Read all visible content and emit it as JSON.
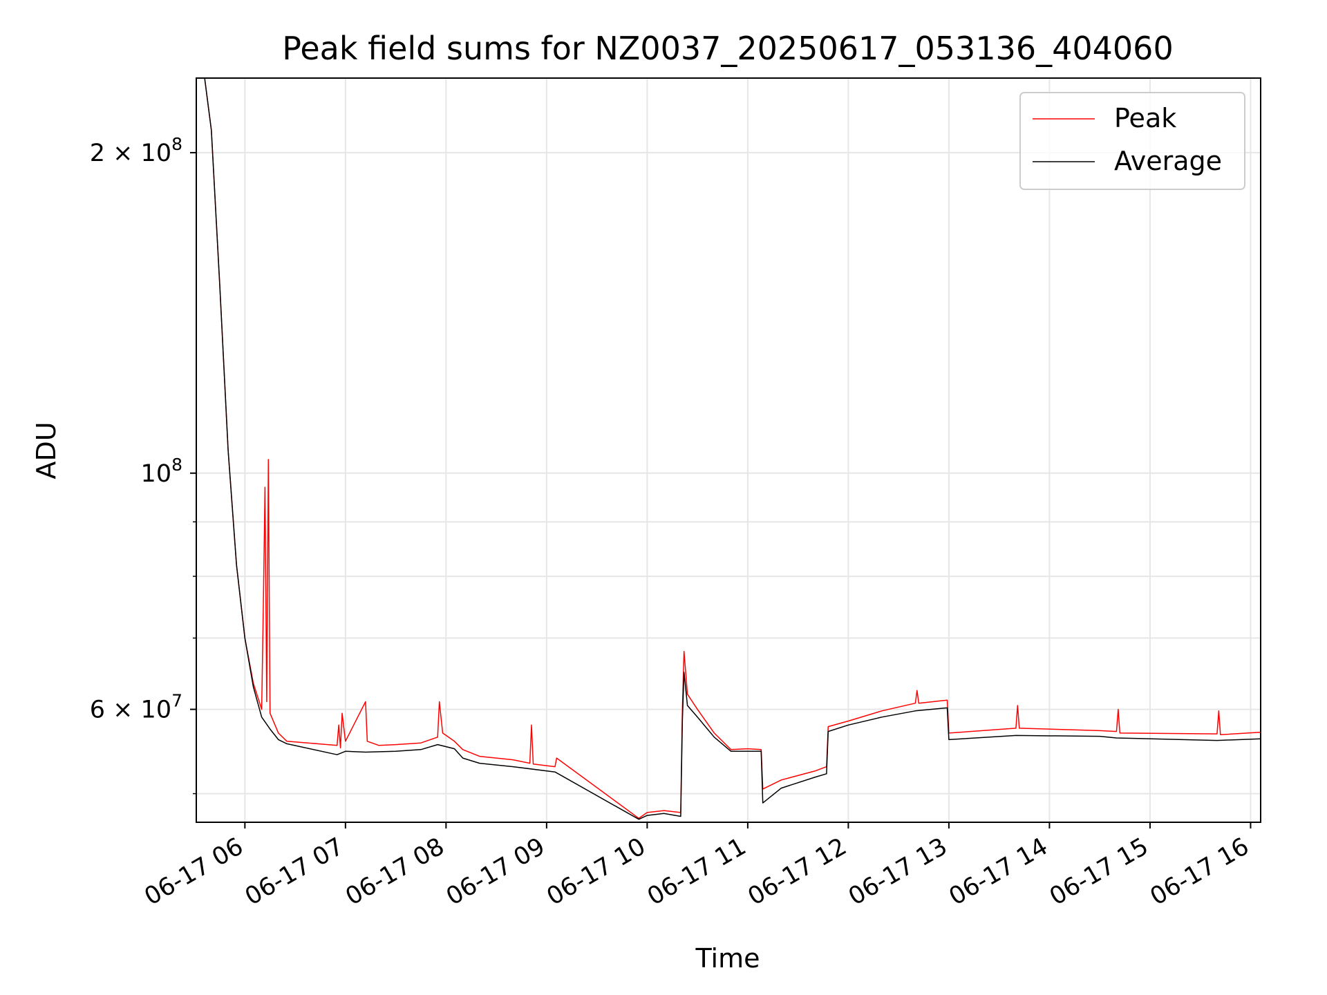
{
  "chart_data": {
    "type": "line",
    "title": "Peak field sums for NZ0037_20250617_053136_404060",
    "xlabel": "Time",
    "ylabel": "ADU",
    "x_unit": "datetime",
    "xlim": [
      "2025-06-17 05:31",
      "2025-06-17 16:06"
    ],
    "ylim": [
      47000000,
      235000000
    ],
    "y_scale": "log",
    "grid": true,
    "legend_position": "top-right",
    "x_ticks": [
      "06-17 06",
      "06-17 07",
      "06-17 08",
      "06-17 09",
      "06-17 10",
      "06-17 11",
      "06-17 12",
      "06-17 13",
      "06-17 14",
      "06-17 15",
      "06-17 16"
    ],
    "y_ticks": [
      {
        "value": 200000000,
        "label": "2×10^8",
        "base": "2 × 10",
        "exp": "8"
      },
      {
        "value": 100000000,
        "label": "10^8",
        "base": "10",
        "exp": "8"
      },
      {
        "value": 60000000,
        "label": "6×10^7",
        "base": "6 × 10",
        "exp": "7"
      }
    ],
    "series": [
      {
        "name": "Peak",
        "color": "#ff0000",
        "points": [
          [
            "2025-06-17 05:31",
            235000000
          ],
          [
            "2025-06-17 05:36",
            235000000
          ],
          [
            "2025-06-17 05:40",
            210000000
          ],
          [
            "2025-06-17 05:45",
            150000000
          ],
          [
            "2025-06-17 05:50",
            105000000
          ],
          [
            "2025-06-17 05:55",
            82000000
          ],
          [
            "2025-06-17 06:00",
            70000000
          ],
          [
            "2025-06-17 06:05",
            63500000
          ],
          [
            "2025-06-17 06:10",
            60000000
          ],
          [
            "2025-06-17 06:11",
            75000000
          ],
          [
            "2025-06-17 06:12",
            97000000
          ],
          [
            "2025-06-17 06:13",
            61000000
          ],
          [
            "2025-06-17 06:14",
            103000000
          ],
          [
            "2025-06-17 06:15",
            59500000
          ],
          [
            "2025-06-17 06:20",
            57000000
          ],
          [
            "2025-06-17 06:25",
            56000000
          ],
          [
            "2025-06-17 06:55",
            55500000
          ],
          [
            "2025-06-17 06:56",
            58000000
          ],
          [
            "2025-06-17 06:57",
            55200000
          ],
          [
            "2025-06-17 06:58",
            59500000
          ],
          [
            "2025-06-17 07:00",
            56000000
          ],
          [
            "2025-06-17 07:12",
            61000000
          ],
          [
            "2025-06-17 07:13",
            56000000
          ],
          [
            "2025-06-17 07:20",
            55500000
          ],
          [
            "2025-06-17 07:30",
            55600000
          ],
          [
            "2025-06-17 07:45",
            55800000
          ],
          [
            "2025-06-17 07:55",
            56500000
          ],
          [
            "2025-06-17 07:56",
            61000000
          ],
          [
            "2025-06-17 07:58",
            57000000
          ],
          [
            "2025-06-17 08:05",
            56000000
          ],
          [
            "2025-06-17 08:10",
            55000000
          ],
          [
            "2025-06-17 08:20",
            54200000
          ],
          [
            "2025-06-17 08:40",
            53800000
          ],
          [
            "2025-06-17 08:50",
            53400000
          ],
          [
            "2025-06-17 08:51",
            58000000
          ],
          [
            "2025-06-17 08:52",
            53300000
          ],
          [
            "2025-06-17 09:05",
            53000000
          ],
          [
            "2025-06-17 09:06",
            54000000
          ],
          [
            "2025-06-17 09:55",
            47400000
          ],
          [
            "2025-06-17 10:00",
            48000000
          ],
          [
            "2025-06-17 10:10",
            48200000
          ],
          [
            "2025-06-17 10:20",
            48000000
          ],
          [
            "2025-06-17 10:21",
            60000000
          ],
          [
            "2025-06-17 10:22",
            68000000
          ],
          [
            "2025-06-17 10:24",
            62000000
          ],
          [
            "2025-06-17 10:30",
            60000000
          ],
          [
            "2025-06-17 10:40",
            57000000
          ],
          [
            "2025-06-17 10:50",
            55000000
          ],
          [
            "2025-06-17 11:00",
            55100000
          ],
          [
            "2025-06-17 11:08",
            55000000
          ],
          [
            "2025-06-17 11:09",
            50500000
          ],
          [
            "2025-06-17 11:20",
            51500000
          ],
          [
            "2025-06-17 11:40",
            52500000
          ],
          [
            "2025-06-17 11:47",
            53000000
          ],
          [
            "2025-06-17 11:48",
            57800000
          ],
          [
            "2025-06-17 12:00",
            58500000
          ],
          [
            "2025-06-17 12:20",
            59800000
          ],
          [
            "2025-06-17 12:40",
            60800000
          ],
          [
            "2025-06-17 12:41",
            62500000
          ],
          [
            "2025-06-17 12:42",
            60800000
          ],
          [
            "2025-06-17 12:59",
            61200000
          ],
          [
            "2025-06-17 13:00",
            57000000
          ],
          [
            "2025-06-17 13:40",
            57600000
          ],
          [
            "2025-06-17 13:41",
            60500000
          ],
          [
            "2025-06-17 13:42",
            57600000
          ],
          [
            "2025-06-17 14:30",
            57300000
          ],
          [
            "2025-06-17 14:40",
            57200000
          ],
          [
            "2025-06-17 14:41",
            60000000
          ],
          [
            "2025-06-17 14:42",
            57000000
          ],
          [
            "2025-06-17 15:40",
            56900000
          ],
          [
            "2025-06-17 15:41",
            59800000
          ],
          [
            "2025-06-17 15:42",
            56800000
          ],
          [
            "2025-06-17 16:06",
            57100000
          ]
        ]
      },
      {
        "name": "Average",
        "color": "#000000",
        "points": [
          [
            "2025-06-17 05:31",
            235000000
          ],
          [
            "2025-06-17 05:36",
            235000000
          ],
          [
            "2025-06-17 05:40",
            210000000
          ],
          [
            "2025-06-17 05:45",
            150000000
          ],
          [
            "2025-06-17 05:50",
            105000000
          ],
          [
            "2025-06-17 05:55",
            82000000
          ],
          [
            "2025-06-17 06:00",
            70000000
          ],
          [
            "2025-06-17 06:05",
            63000000
          ],
          [
            "2025-06-17 06:10",
            59000000
          ],
          [
            "2025-06-17 06:15",
            57500000
          ],
          [
            "2025-06-17 06:20",
            56200000
          ],
          [
            "2025-06-17 06:25",
            55700000
          ],
          [
            "2025-06-17 06:55",
            54400000
          ],
          [
            "2025-06-17 07:00",
            54800000
          ],
          [
            "2025-06-17 07:12",
            54700000
          ],
          [
            "2025-06-17 07:30",
            54800000
          ],
          [
            "2025-06-17 07:45",
            55000000
          ],
          [
            "2025-06-17 07:55",
            55600000
          ],
          [
            "2025-06-17 08:05",
            55100000
          ],
          [
            "2025-06-17 08:10",
            54000000
          ],
          [
            "2025-06-17 08:20",
            53400000
          ],
          [
            "2025-06-17 08:40",
            53000000
          ],
          [
            "2025-06-17 09:05",
            52400000
          ],
          [
            "2025-06-17 09:55",
            47300000
          ],
          [
            "2025-06-17 10:00",
            47700000
          ],
          [
            "2025-06-17 10:10",
            47900000
          ],
          [
            "2025-06-17 10:20",
            47600000
          ],
          [
            "2025-06-17 10:21",
            58500000
          ],
          [
            "2025-06-17 10:22",
            65000000
          ],
          [
            "2025-06-17 10:24",
            60500000
          ],
          [
            "2025-06-17 10:30",
            59000000
          ],
          [
            "2025-06-17 10:40",
            56500000
          ],
          [
            "2025-06-17 10:50",
            54800000
          ],
          [
            "2025-06-17 11:08",
            54800000
          ],
          [
            "2025-06-17 11:09",
            49000000
          ],
          [
            "2025-06-17 11:20",
            50600000
          ],
          [
            "2025-06-17 11:40",
            51800000
          ],
          [
            "2025-06-17 11:47",
            52200000
          ],
          [
            "2025-06-17 11:48",
            57200000
          ],
          [
            "2025-06-17 12:00",
            58000000
          ],
          [
            "2025-06-17 12:20",
            59000000
          ],
          [
            "2025-06-17 12:40",
            59800000
          ],
          [
            "2025-06-17 12:59",
            60200000
          ],
          [
            "2025-06-17 13:00",
            56200000
          ],
          [
            "2025-06-17 13:40",
            56700000
          ],
          [
            "2025-06-17 14:30",
            56600000
          ],
          [
            "2025-06-17 14:40",
            56400000
          ],
          [
            "2025-06-17 15:40",
            56100000
          ],
          [
            "2025-06-17 16:06",
            56300000
          ]
        ]
      }
    ]
  }
}
